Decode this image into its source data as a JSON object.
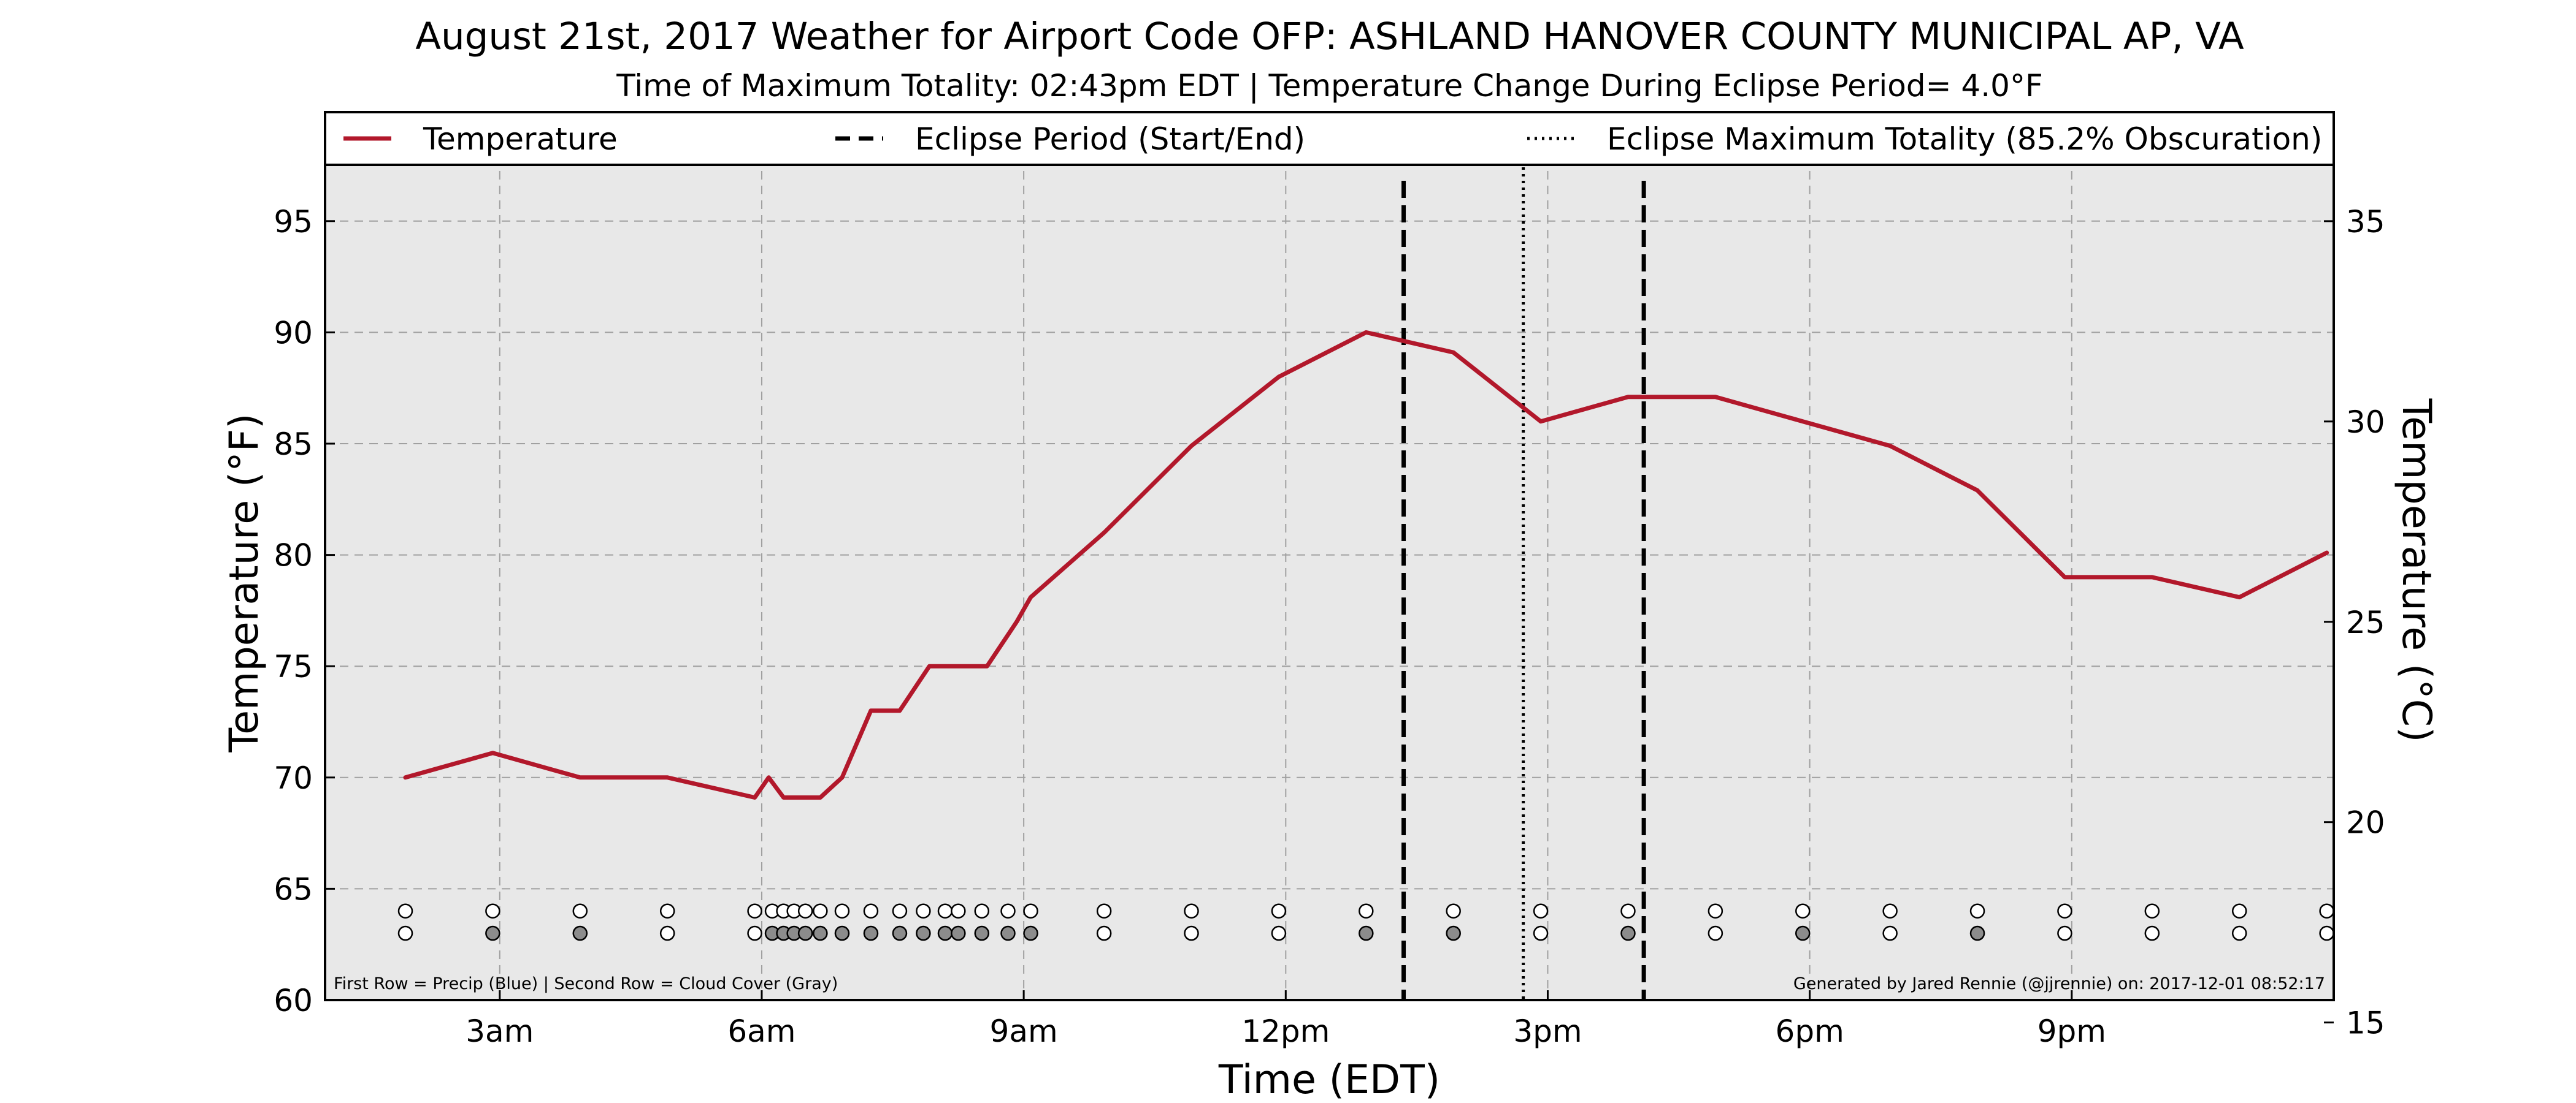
{
  "chart_data": {
    "type": "line",
    "title": "August 21st, 2017 Weather for Airport Code OFP: ASHLAND HANOVER COUNTY MUNICIPAL AP, VA",
    "subtitle": "Time of Maximum Totality: 02:43pm EDT | Temperature Change During Eclipse Period= 4.0°F",
    "xlabel": "Time (EDT)",
    "ylabel": "Temperature (°F)",
    "ylabel_right": "Temperature (°C)",
    "xlim": [
      1.0,
      24.0
    ],
    "ylim": [
      60,
      97.5
    ],
    "ylim_right": [
      15.56,
      36.39
    ],
    "grid": true,
    "legend_position": "top",
    "x_ticks": [
      {
        "value": 3,
        "label": "3am"
      },
      {
        "value": 6,
        "label": "6am"
      },
      {
        "value": 9,
        "label": "9am"
      },
      {
        "value": 12,
        "label": "12pm"
      },
      {
        "value": 15,
        "label": "3pm"
      },
      {
        "value": 18,
        "label": "6pm"
      },
      {
        "value": 21,
        "label": "9pm"
      }
    ],
    "y_ticks": [
      60,
      65,
      70,
      75,
      80,
      85,
      90,
      95
    ],
    "y_ticks_right": [
      15,
      20,
      25,
      30,
      35
    ],
    "legend": [
      {
        "label": "Temperature",
        "style": "solid"
      },
      {
        "label": "Eclipse Period (Start/End)",
        "style": "dashed"
      },
      {
        "label": "Eclipse Maximum Totality (85.2% Obscuration)",
        "style": "dotted"
      }
    ],
    "series": [
      {
        "name": "Temperature",
        "color": "#b2182b",
        "x": [
          1.92,
          2.92,
          3.92,
          4.92,
          5.92,
          6.08,
          6.25,
          6.42,
          6.67,
          6.92,
          7.25,
          7.58,
          7.92,
          8.25,
          8.58,
          8.92,
          9.08,
          9.92,
          10.92,
          11.92,
          12.92,
          13.92,
          14.92,
          15.92,
          16.92,
          17.92,
          18.92,
          19.92,
          20.92,
          21.92,
          22.92,
          23.92
        ],
        "y": [
          70,
          71.1,
          70,
          70,
          69.1,
          70,
          69.1,
          69.1,
          69.1,
          70,
          73,
          73,
          75,
          75,
          75,
          77,
          78.1,
          81,
          84.9,
          88,
          90,
          89.1,
          86,
          87.1,
          87.1,
          86,
          84.9,
          82.9,
          79,
          79,
          78.1,
          80.1
        ]
      }
    ],
    "eclipse_start": 13.35,
    "eclipse_end": 16.1,
    "eclipse_max": 14.72,
    "precip_row_y": 64,
    "cloud_row_y": 63,
    "obs_times": [
      1.92,
      2.92,
      3.92,
      4.92,
      5.92,
      6.12,
      6.25,
      6.37,
      6.5,
      6.67,
      6.92,
      7.25,
      7.58,
      7.85,
      8.1,
      8.25,
      8.52,
      8.82,
      9.08,
      9.92,
      10.92,
      11.92,
      12.92,
      13.92,
      14.92,
      15.92,
      16.92,
      17.92,
      18.92,
      19.92,
      20.92,
      21.92,
      22.92,
      23.92
    ],
    "precip_filled": [
      false,
      false,
      false,
      false,
      false,
      false,
      false,
      false,
      false,
      false,
      false,
      false,
      false,
      false,
      false,
      false,
      false,
      false,
      false,
      false,
      false,
      false,
      false,
      false,
      false,
      false,
      false,
      false,
      false,
      false,
      false,
      false,
      false,
      false
    ],
    "cloud_filled": [
      false,
      true,
      true,
      false,
      false,
      true,
      true,
      true,
      true,
      true,
      true,
      true,
      true,
      true,
      true,
      true,
      true,
      true,
      true,
      false,
      false,
      false,
      true,
      true,
      false,
      true,
      false,
      true,
      false,
      true,
      false,
      false,
      false,
      false
    ],
    "footnote_left": "First Row = Precip (Blue) | Second Row = Cloud Cover (Gray)",
    "footnote_right": "Generated by Jared Rennie (@jjrennie) on: 2017-12-01 08:52:17"
  }
}
